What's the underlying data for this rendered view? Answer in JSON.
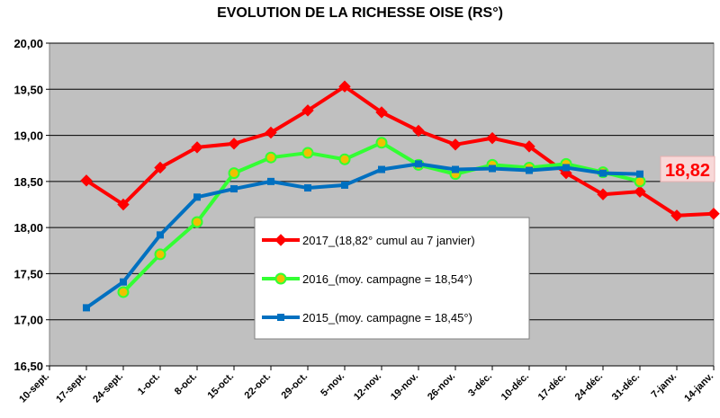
{
  "chart_data": {
    "type": "line",
    "title": "EVOLUTION DE LA RICHESSE OISE (RS°)",
    "xlabel": "",
    "ylabel": "",
    "ylim": [
      16.5,
      20.0
    ],
    "yticks": [
      "16,50",
      "17,00",
      "17,50",
      "18,00",
      "18,50",
      "19,00",
      "19,50",
      "20,00"
    ],
    "categories": [
      "10-sept.",
      "17-sept.",
      "24-sept.",
      "1-oct.",
      "8-oct.",
      "15-oct.",
      "22-oct.",
      "29-oct.",
      "5-nov.",
      "12-nov.",
      "19-nov.",
      "26-nov.",
      "3-déc.",
      "10-déc.",
      "17-déc.",
      "24-déc.",
      "31-déc.",
      "7-janv.",
      "14-janv."
    ],
    "grid": true,
    "legend_position": "center",
    "series": [
      {
        "name": "2017_(18,82° cumul au 7 janvier)",
        "color": "#ff0000",
        "marker": "diamond",
        "values": [
          null,
          18.51,
          18.25,
          18.65,
          18.87,
          18.91,
          19.03,
          19.27,
          19.53,
          19.25,
          19.05,
          18.9,
          18.97,
          18.88,
          18.59,
          18.36,
          18.39,
          18.13,
          18.15
        ]
      },
      {
        "name": "2016_(moy. campagne = 18,54°)",
        "color": "#33ff33",
        "marker": "circle",
        "values": [
          null,
          null,
          17.3,
          17.71,
          18.06,
          18.59,
          18.76,
          18.81,
          18.74,
          18.92,
          18.68,
          18.58,
          18.68,
          18.65,
          18.69,
          18.6,
          18.5,
          null,
          null
        ]
      },
      {
        "name": "2015_(moy. campagne = 18,45°)",
        "color": "#0070c0",
        "marker": "square",
        "values": [
          null,
          17.13,
          17.41,
          17.92,
          18.33,
          18.42,
          18.5,
          18.43,
          18.46,
          18.63,
          18.69,
          18.63,
          18.64,
          18.62,
          18.65,
          18.59,
          18.58,
          null,
          null
        ]
      }
    ],
    "annotation": {
      "text": "18,82",
      "color": "#ff0000",
      "background": "#f8d8d8"
    }
  }
}
